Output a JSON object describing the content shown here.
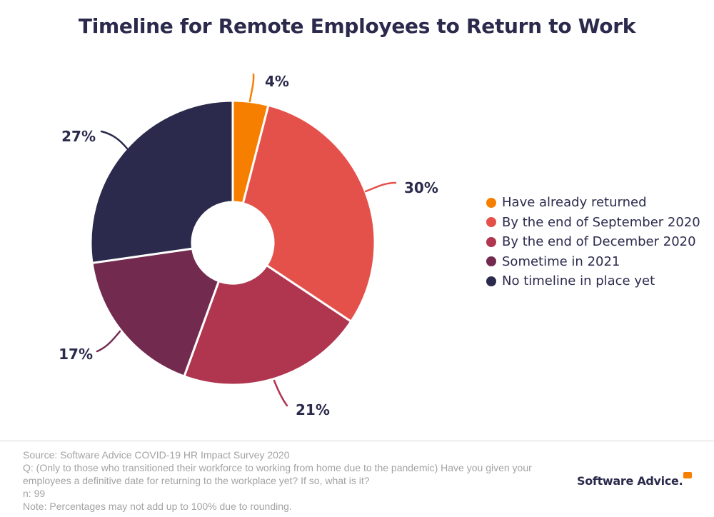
{
  "chart_data": {
    "type": "pie",
    "title": "Timeline for Remote Employees to Return to Work",
    "categories": [
      "Have already returned",
      "By the end of September 2020",
      "By the end of December 2020",
      "Sometime in 2021",
      "No timeline in place yet"
    ],
    "values": [
      4,
      30,
      21,
      17,
      27
    ],
    "data_labels": [
      "4%",
      "30%",
      "21%",
      "17%",
      "27%"
    ],
    "colors": [
      "#f77f00",
      "#e4514a",
      "#b0354f",
      "#722b4f",
      "#2b2a4c"
    ],
    "donut": true,
    "legend_position": "right"
  },
  "footer": {
    "source": "Source: Software Advice COVID-19 HR Impact Survey 2020",
    "question": "Q: (Only to those who transitioned their workforce to working from home due to the pandemic) Have you given your employees a definitive date for returning to the workplace yet? If so, what is it?",
    "n": "n: 99",
    "note": "Note: Percentages may not add up to 100% due to rounding."
  },
  "brand": {
    "name": "Software Advice."
  }
}
